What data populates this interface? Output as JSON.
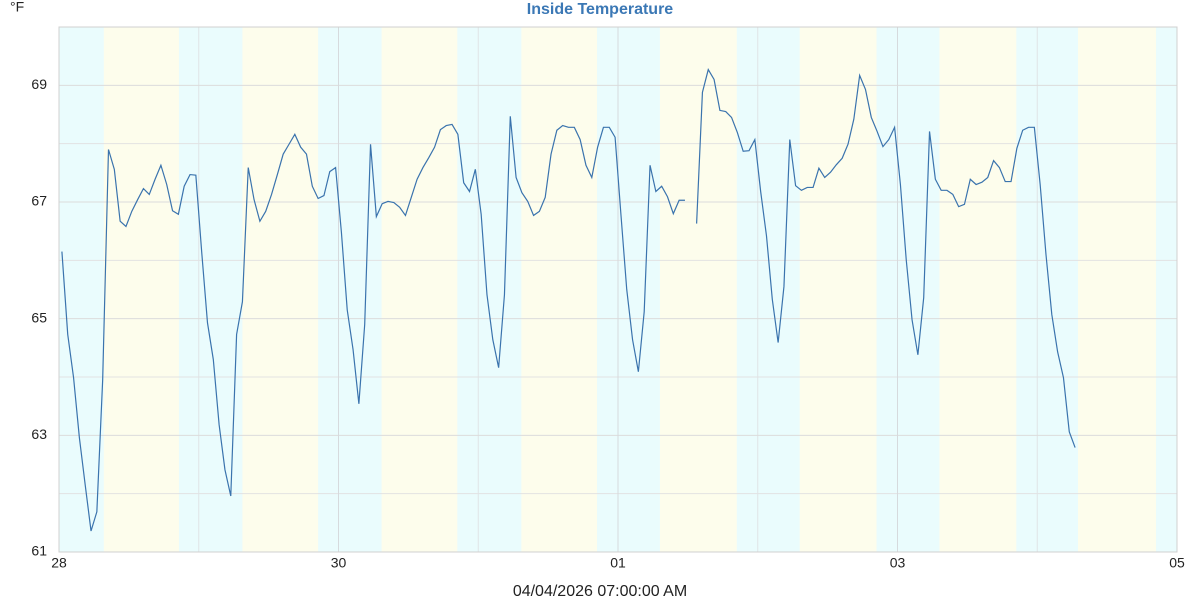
{
  "chart_data": {
    "type": "line",
    "title": "Inside Temperature",
    "y_unit": "°F",
    "x_label": "04/04/2026 07:00:00 AM",
    "x": [
      0,
      1,
      2,
      3,
      4,
      5,
      6,
      7,
      8,
      9,
      10,
      11,
      12,
      13,
      14,
      15,
      16,
      17,
      18,
      19,
      20,
      21,
      22,
      23,
      24,
      25,
      26,
      27,
      28,
      29,
      30,
      31,
      32,
      33,
      34,
      35,
      36,
      37,
      38,
      39,
      40,
      41,
      42,
      43,
      44,
      45,
      46,
      47,
      48,
      49,
      50,
      51,
      52,
      53,
      54,
      55,
      56,
      57,
      58,
      59,
      60,
      61,
      62,
      63,
      64,
      65,
      66,
      67,
      68,
      69,
      70,
      71,
      72,
      73,
      74,
      75,
      76,
      77,
      78,
      79,
      80,
      81,
      82,
      83,
      84,
      85,
      86,
      87,
      88,
      89,
      90,
      91,
      92,
      93,
      94,
      95,
      96,
      97,
      98,
      99,
      100,
      101,
      102,
      103,
      104,
      105,
      106,
      107,
      108,
      109,
      110,
      111,
      112,
      113,
      114,
      115,
      116,
      117,
      118,
      119,
      120,
      121,
      122,
      123,
      124,
      125,
      126,
      127,
      128,
      129,
      130,
      131,
      132,
      133,
      134,
      135,
      136,
      137,
      138,
      139,
      140,
      141,
      142,
      143,
      144,
      145,
      146,
      147,
      148,
      149,
      150,
      151,
      152,
      153,
      154,
      155,
      156,
      157,
      158,
      159,
      160,
      161,
      162,
      163,
      164,
      165,
      166,
      167,
      168,
      169,
      170,
      171,
      172,
      173,
      174
    ],
    "series": [
      {
        "name": "Inside Temperature",
        "color": "#3a73ad",
        "values": [
          66.15,
          64.73,
          63.99,
          62.96,
          62.15,
          61.36,
          61.69,
          63.95,
          67.9,
          67.56,
          66.67,
          66.58,
          66.84,
          67.04,
          67.23,
          67.13,
          67.39,
          67.63,
          67.3,
          66.85,
          66.79,
          67.27,
          67.47,
          67.46,
          66.15,
          64.93,
          64.3,
          63.18,
          62.41,
          61.96,
          64.73,
          65.29,
          67.59,
          67.04,
          66.67,
          66.84,
          67.13,
          67.47,
          67.82,
          67.99,
          68.16,
          67.94,
          67.82,
          67.27,
          67.06,
          67.11,
          67.52,
          67.59,
          66.48,
          65.15,
          64.47,
          63.54,
          64.9,
          67.99,
          66.75,
          66.97,
          67.01,
          66.99,
          66.91,
          66.77,
          67.08,
          67.39,
          67.59,
          67.76,
          67.94,
          68.24,
          68.31,
          68.33,
          68.16,
          67.33,
          67.18,
          67.56,
          66.79,
          65.41,
          64.64,
          64.16,
          65.41,
          68.47,
          67.42,
          67.16,
          67.01,
          66.77,
          66.84,
          67.08,
          67.82,
          68.23,
          68.31,
          68.28,
          68.28,
          68.07,
          67.63,
          67.42,
          67.94,
          68.28,
          68.28,
          68.11,
          66.79,
          65.5,
          64.64,
          64.09,
          65.12,
          67.63,
          67.18,
          67.27,
          67.09,
          66.8,
          67.03,
          67.03,
          null,
          66.63,
          68.88,
          69.27,
          69.1,
          68.57,
          68.55,
          68.45,
          68.19,
          67.87,
          67.88,
          68.07,
          67.18,
          66.42,
          65.33,
          64.59,
          65.55,
          68.07,
          67.28,
          67.2,
          67.25,
          67.25,
          67.58,
          67.42,
          67.51,
          67.64,
          67.75,
          67.99,
          68.42,
          69.17,
          68.93,
          68.45,
          68.21,
          67.95,
          68.07,
          68.28,
          67.3,
          66.01,
          64.98,
          64.38,
          65.36,
          68.21,
          67.39,
          67.2,
          67.2,
          67.13,
          66.92,
          66.96,
          67.39,
          67.3,
          67.34,
          67.42,
          67.71,
          67.59,
          67.35,
          67.35,
          67.92,
          68.23,
          68.28,
          68.28,
          67.3,
          66.1,
          65.07,
          64.43,
          63.99,
          63.06,
          62.79
        ]
      }
    ],
    "xlim": [
      -0.5,
      191.5
    ],
    "xticks": [
      {
        "value": -0.5,
        "label": "28"
      },
      {
        "value": 47.5,
        "label": "30"
      },
      {
        "value": 95.5,
        "label": "01"
      },
      {
        "value": 143.5,
        "label": "03"
      },
      {
        "value": 191.5,
        "label": "05"
      }
    ],
    "x_minor_ticks": [
      23.5,
      71.5,
      119.5,
      167.5
    ],
    "ylim": [
      61,
      70
    ],
    "yticks": [
      61,
      63,
      65,
      67,
      69
    ],
    "y_minor_ticks": [
      62,
      64,
      66,
      68,
      70
    ],
    "grid": true,
    "night_color": "#eafcfd",
    "day_color": "#fdfdec",
    "night_ranges": [
      [
        -0.5,
        7.2
      ],
      [
        20.1,
        31
      ],
      [
        44,
        54.9
      ],
      [
        67.9,
        78.9
      ],
      [
        91.9,
        102.7
      ],
      [
        115.9,
        126.7
      ],
      [
        139.9,
        150.7
      ],
      [
        163.9,
        174.5
      ],
      [
        187.9,
        191.5
      ]
    ]
  }
}
